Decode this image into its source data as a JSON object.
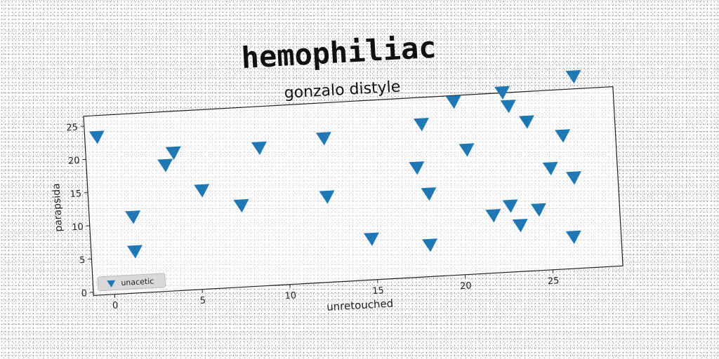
{
  "chart_data": {
    "type": "scatter",
    "title": "hemophiliac",
    "subtitle": "gonzalo distyle",
    "xlabel": "unretouched",
    "ylabel": "parapsida",
    "xlim": [
      -1.2,
      29
    ],
    "ylim": [
      -0.5,
      26.5
    ],
    "xticks": [
      0,
      5,
      10,
      15,
      20,
      25
    ],
    "yticks": [
      0,
      5,
      10,
      15,
      20,
      25
    ],
    "grid": false,
    "legend_position": "lower-left",
    "colors": {
      "marker": "#1f77b4",
      "axes": "#222222",
      "text": "#111111"
    },
    "series": [
      {
        "name": "unacetic",
        "marker": "triangle-down",
        "points": [
          [
            -0.5,
            23.3
          ],
          [
            1.3,
            11.0
          ],
          [
            1.3,
            5.8
          ],
          [
            3.3,
            18.5
          ],
          [
            3.8,
            20.3
          ],
          [
            5.3,
            14.4
          ],
          [
            7.5,
            11.8
          ],
          [
            8.7,
            20.3
          ],
          [
            12.4,
            21.2
          ],
          [
            12.4,
            12.4
          ],
          [
            14.8,
            5.7
          ],
          [
            17.6,
            16.0
          ],
          [
            18.0,
            22.5
          ],
          [
            18.2,
            12.0
          ],
          [
            18.1,
            4.3
          ],
          [
            19.9,
            25.6
          ],
          [
            20.5,
            18.3
          ],
          [
            21.8,
            8.2
          ],
          [
            22.7,
            26.6
          ],
          [
            22.8,
            9.5
          ],
          [
            23.0,
            24.5
          ],
          [
            23.3,
            6.5
          ],
          [
            24.0,
            22.0
          ],
          [
            24.4,
            8.7
          ],
          [
            25.2,
            14.8
          ],
          [
            26.0,
            19.6
          ],
          [
            26.3,
            4.3
          ],
          [
            26.5,
            13.2
          ],
          [
            26.8,
            28.4
          ]
        ]
      }
    ]
  }
}
